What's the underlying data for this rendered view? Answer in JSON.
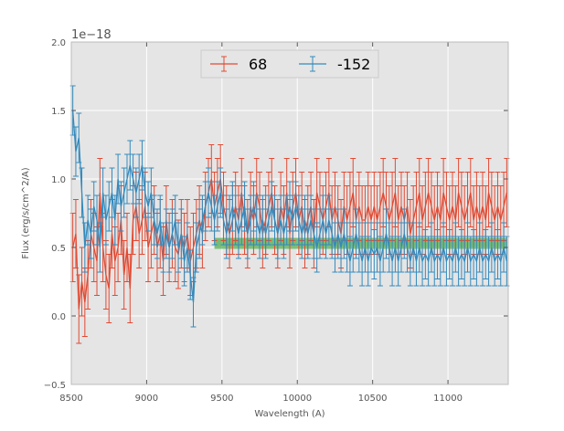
{
  "chart_data": {
    "type": "line",
    "title": "",
    "xlabel": "Wavelength (A)",
    "ylabel": "Flux (erg/s/cm^2/A)",
    "y_offset_text": "1e−18",
    "xlim": [
      8500,
      11400
    ],
    "ylim": [
      -0.5,
      2.0
    ],
    "x_ticks": [
      8500,
      9000,
      9500,
      10000,
      10500,
      11000
    ],
    "x_tick_labels": [
      "8500",
      "9000",
      "9500",
      "10000",
      "10500",
      "11000"
    ],
    "y_ticks": [
      -0.5,
      0.0,
      0.5,
      1.0,
      1.5,
      2.0
    ],
    "y_tick_labels": [
      "−0.5",
      "0.0",
      "0.5",
      "1.0",
      "1.5",
      "2.0"
    ],
    "grid": true,
    "background_color": "#e5e5e5",
    "legend_position": "top-center",
    "legend": [
      "68",
      "-152"
    ],
    "x": [
      8510,
      8530,
      8550,
      8570,
      8590,
      8610,
      8630,
      8650,
      8670,
      8690,
      8710,
      8730,
      8750,
      8770,
      8790,
      8810,
      8830,
      8850,
      8870,
      8890,
      8910,
      8930,
      8950,
      8970,
      8990,
      9010,
      9030,
      9050,
      9070,
      9090,
      9110,
      9130,
      9150,
      9170,
      9190,
      9210,
      9230,
      9250,
      9270,
      9290,
      9310,
      9330,
      9350,
      9370,
      9390,
      9410,
      9430,
      9450,
      9470,
      9490,
      9510,
      9530,
      9550,
      9570,
      9590,
      9610,
      9630,
      9650,
      9670,
      9690,
      9710,
      9730,
      9750,
      9770,
      9790,
      9810,
      9830,
      9850,
      9870,
      9890,
      9910,
      9930,
      9950,
      9970,
      9990,
      10010,
      10030,
      10050,
      10070,
      10090,
      10110,
      10130,
      10150,
      10170,
      10190,
      10210,
      10230,
      10250,
      10270,
      10290,
      10310,
      10330,
      10350,
      10370,
      10390,
      10410,
      10430,
      10450,
      10470,
      10490,
      10510,
      10530,
      10550,
      10570,
      10590,
      10610,
      10630,
      10650,
      10670,
      10690,
      10710,
      10730,
      10750,
      10770,
      10790,
      10810,
      10830,
      10850,
      10870,
      10890,
      10910,
      10930,
      10950,
      10970,
      10990,
      11010,
      11030,
      11050,
      11070,
      11090,
      11110,
      11130,
      11150,
      11170,
      11190,
      11210,
      11230,
      11250,
      11270,
      11290,
      11310,
      11330,
      11350,
      11370,
      11390
    ],
    "series": [
      {
        "name": "68",
        "color": "#e24a33",
        "y": [
          0.5,
          0.6,
          0.05,
          0.25,
          0.1,
          0.3,
          0.6,
          0.5,
          0.4,
          0.9,
          0.5,
          0.3,
          0.2,
          0.6,
          0.4,
          0.5,
          0.7,
          0.3,
          0.5,
          0.2,
          0.7,
          0.8,
          0.6,
          0.7,
          0.8,
          0.5,
          0.6,
          0.7,
          0.5,
          0.6,
          0.4,
          0.7,
          0.5,
          0.6,
          0.5,
          0.45,
          0.6,
          0.5,
          0.6,
          0.4,
          0.5,
          0.6,
          0.7,
          0.6,
          0.8,
          0.9,
          1.0,
          0.8,
          0.9,
          1.0,
          0.8,
          0.7,
          0.6,
          0.7,
          0.8,
          0.7,
          0.9,
          0.7,
          0.6,
          0.8,
          0.7,
          0.9,
          0.8,
          0.6,
          0.7,
          0.8,
          0.9,
          0.7,
          0.6,
          0.8,
          0.7,
          0.9,
          0.6,
          0.8,
          0.9,
          0.7,
          0.8,
          0.6,
          0.7,
          0.8,
          0.6,
          0.9,
          0.8,
          0.7,
          0.8,
          0.9,
          0.7,
          0.8,
          0.7,
          0.6,
          0.8,
          0.7,
          0.8,
          0.9,
          0.7,
          0.8,
          0.7,
          0.7,
          0.8,
          0.7,
          0.8,
          0.7,
          0.8,
          0.9,
          0.8,
          0.7,
          0.8,
          0.9,
          0.7,
          0.8,
          0.7,
          0.8,
          0.6,
          0.7,
          0.8,
          0.9,
          0.7,
          0.8,
          0.9,
          0.8,
          0.7,
          0.8,
          0.7,
          0.9,
          0.8,
          0.7,
          0.8,
          0.7,
          0.9,
          0.8,
          0.7,
          0.8,
          0.9,
          0.7,
          0.8,
          0.7,
          0.8,
          0.7,
          0.9,
          0.8,
          0.7,
          0.8,
          0.7,
          0.8,
          0.9
        ],
        "err": 0.25
      },
      {
        "name": "-152",
        "color": "#348abd",
        "y": [
          1.5,
          1.2,
          1.3,
          0.9,
          0.5,
          0.7,
          0.6,
          0.8,
          0.7,
          0.5,
          0.9,
          0.7,
          0.8,
          0.9,
          0.7,
          1.0,
          0.8,
          0.9,
          1.0,
          1.1,
          1.0,
          0.9,
          1.0,
          1.1,
          0.9,
          0.8,
          0.9,
          0.7,
          0.6,
          0.7,
          0.5,
          0.6,
          0.5,
          0.6,
          0.7,
          0.5,
          0.6,
          0.4,
          0.5,
          0.3,
          0.1,
          0.5,
          0.6,
          0.7,
          0.8,
          0.9,
          0.8,
          0.7,
          0.8,
          0.9,
          0.7,
          0.6,
          0.7,
          0.8,
          0.7,
          0.6,
          0.7,
          0.8,
          0.6,
          0.7,
          0.8,
          0.7,
          0.6,
          0.7,
          0.6,
          0.7,
          0.8,
          0.7,
          0.6,
          0.7,
          0.6,
          0.7,
          0.8,
          0.7,
          0.8,
          0.7,
          0.6,
          0.7,
          0.6,
          0.7,
          0.6,
          0.5,
          0.6,
          0.7,
          0.6,
          0.7,
          0.6,
          0.5,
          0.6,
          0.5,
          0.6,
          0.5,
          0.4,
          0.5,
          0.6,
          0.5,
          0.4,
          0.5,
          0.4,
          0.5,
          0.45,
          0.5,
          0.4,
          0.5,
          0.6,
          0.5,
          0.4,
          0.5,
          0.4,
          0.5,
          0.6,
          0.5,
          0.4,
          0.5,
          0.4,
          0.5,
          0.4,
          0.45,
          0.4,
          0.5,
          0.4,
          0.45,
          0.4,
          0.5,
          0.4,
          0.45,
          0.4,
          0.5,
          0.4,
          0.45,
          0.4,
          0.5,
          0.4,
          0.45,
          0.4,
          0.5,
          0.4,
          0.45,
          0.4,
          0.5,
          0.4,
          0.45,
          0.4,
          0.5,
          0.4
        ],
        "err": 0.18
      }
    ],
    "band": {
      "x_start": 9450,
      "x_end": 11390,
      "y_low": 0.49,
      "y_high": 0.57,
      "color": "#2ca02c"
    }
  }
}
